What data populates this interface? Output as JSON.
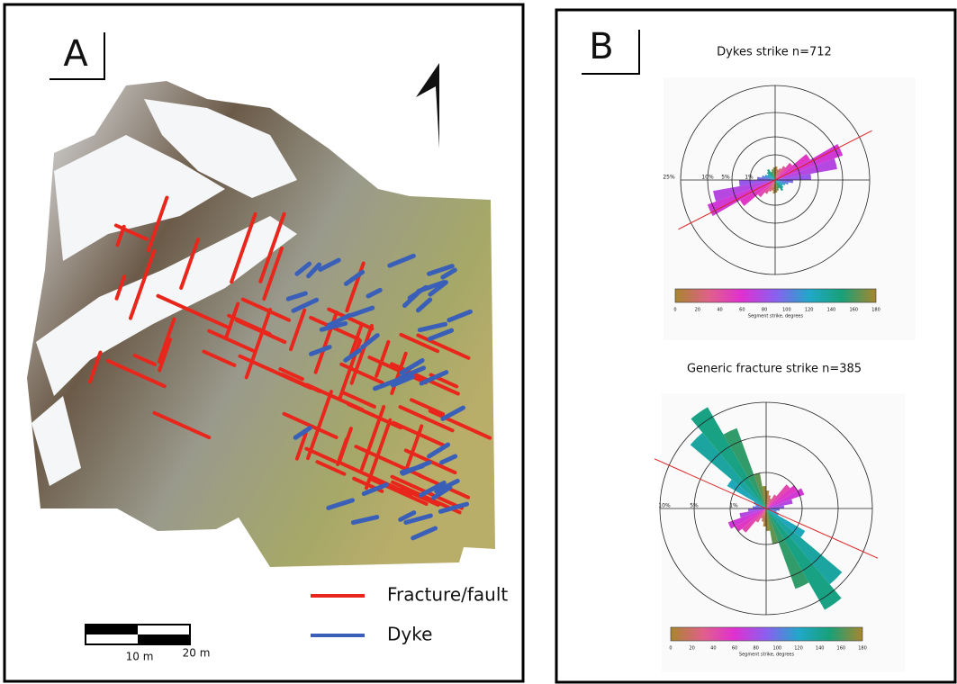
{
  "panel_a": {
    "label": "A",
    "legend": [
      "Fracture/fault",
      "Dyke"
    ],
    "scale_bar": [
      "10 m",
      "20 m"
    ]
  },
  "panel_b": {
    "label": "B",
    "roses": [
      {
        "title": "Dykes strike n=712",
        "ring_labels": [
          "25%",
          "10%",
          "5%",
          "1%"
        ],
        "colorbar_ticks": [
          0,
          20,
          40,
          60,
          80,
          100,
          120,
          140,
          160,
          180
        ],
        "colorbar_label": "Segment strike, degrees"
      },
      {
        "title": "Generic fracture strike n=385",
        "ring_labels": [
          "10%",
          "5%",
          "1%"
        ],
        "colorbar_ticks": [
          0,
          20,
          40,
          60,
          80,
          100,
          120,
          140,
          160,
          180
        ],
        "colorbar_label": "Segment strike, degrees"
      }
    ]
  }
}
